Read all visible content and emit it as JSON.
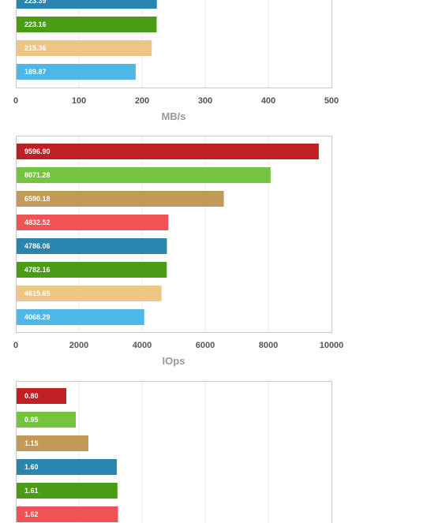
{
  "chart_data": [
    {
      "type": "bar",
      "orientation": "horizontal",
      "xlabel": "MB/s",
      "xlim": [
        0,
        500
      ],
      "xticks": [
        "0",
        "100",
        "200",
        "300",
        "400",
        "500"
      ],
      "grid": true,
      "values": [
        223.39,
        223.16,
        215.36,
        189.87
      ],
      "labels": [
        "223.39",
        "223.16",
        "215.36",
        "189.87"
      ],
      "colors": [
        "#2984b0",
        "#4a9c16",
        "#eec582",
        "#4db8e8"
      ]
    },
    {
      "type": "bar",
      "orientation": "horizontal",
      "xlabel": "IOps",
      "xlim": [
        0,
        10000
      ],
      "xticks": [
        "0",
        "2000",
        "4000",
        "6000",
        "8000",
        "10000"
      ],
      "grid": true,
      "values": [
        9596.9,
        8071.28,
        6590.18,
        4832.52,
        4786.06,
        4782.16,
        4615.65,
        4068.29
      ],
      "labels": [
        "9596.90",
        "8071.28",
        "6590.18",
        "4832.52",
        "4786.06",
        "4782.16",
        "4615.65",
        "4068.29"
      ],
      "colors": [
        "#be2025",
        "#74c43f",
        "#c29a57",
        "#ef5356",
        "#2984b0",
        "#4a9c16",
        "#eec582",
        "#4db8e8"
      ]
    },
    {
      "type": "bar",
      "orientation": "horizontal",
      "xlim": [
        0,
        5
      ],
      "grid": true,
      "values": [
        0.8,
        0.95,
        1.15,
        1.6,
        1.61,
        1.62
      ],
      "labels": [
        "0.80",
        "0.95",
        "1.15",
        "1.60",
        "1.61",
        "1.62"
      ],
      "colors": [
        "#be2025",
        "#74c43f",
        "#c29a57",
        "#2984b0",
        "#4a9c16",
        "#ef5356"
      ]
    }
  ]
}
